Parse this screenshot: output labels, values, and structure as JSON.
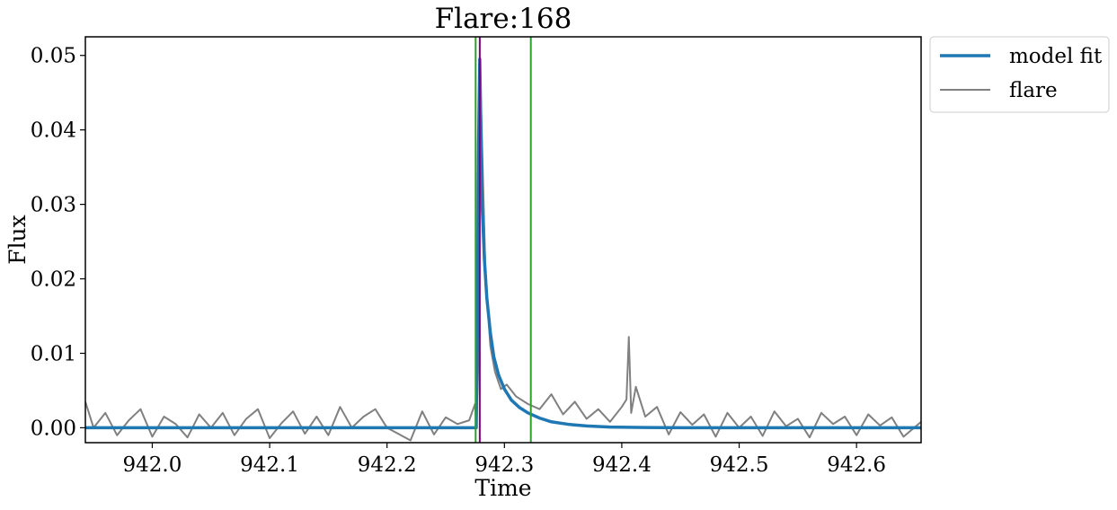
{
  "chart_data": {
    "type": "line",
    "title": "Flare:168",
    "xlabel": "Time",
    "ylabel": "Flux",
    "xlim": [
      941.943,
      942.655
    ],
    "ylim": [
      -0.002,
      0.0525
    ],
    "xticks": [
      942.0,
      942.1,
      942.2,
      942.3,
      942.4,
      942.5,
      942.6
    ],
    "xtick_labels": [
      "942.0",
      "942.1",
      "942.2",
      "942.3",
      "942.4",
      "942.5",
      "942.6"
    ],
    "yticks": [
      0.0,
      0.01,
      0.02,
      0.03,
      0.04,
      0.05
    ],
    "ytick_labels": [
      "0.00",
      "0.01",
      "0.02",
      "0.03",
      "0.04",
      "0.05"
    ],
    "grid": false,
    "legend": {
      "position": "outside-top-right",
      "entries": [
        "model fit",
        "flare"
      ]
    },
    "series": [
      {
        "name": "flare",
        "color": "#808080",
        "x": [
          941.943,
          941.95,
          941.96,
          941.97,
          941.98,
          941.99,
          942.0,
          942.01,
          942.02,
          942.03,
          942.04,
          942.05,
          942.06,
          942.07,
          942.08,
          942.09,
          942.1,
          942.11,
          942.12,
          942.13,
          942.14,
          942.15,
          942.16,
          942.17,
          942.18,
          942.19,
          942.2,
          942.22,
          942.23,
          942.24,
          942.25,
          942.26,
          942.27,
          942.275,
          942.276,
          942.278,
          942.279,
          942.281,
          942.284,
          942.288,
          942.292,
          942.297,
          942.302,
          942.31,
          942.32,
          942.33,
          942.34,
          942.35,
          942.36,
          942.37,
          942.38,
          942.39,
          942.4,
          942.404,
          942.406,
          942.408,
          942.412,
          942.42,
          942.43,
          942.44,
          942.45,
          942.46,
          942.47,
          942.48,
          942.49,
          942.5,
          942.51,
          942.52,
          942.53,
          942.54,
          942.55,
          942.56,
          942.57,
          942.58,
          942.59,
          942.6,
          942.61,
          942.62,
          942.63,
          942.64,
          942.655
        ],
        "y": [
          0.0035,
          0.0,
          0.002,
          -0.001,
          0.001,
          0.0025,
          -0.0012,
          0.0015,
          0.0005,
          -0.0013,
          0.0018,
          0.0,
          0.002,
          -0.001,
          0.0012,
          0.0025,
          -0.0014,
          0.0006,
          0.0022,
          -0.0008,
          0.0015,
          -0.001,
          0.0028,
          0.0,
          0.0015,
          0.0025,
          0.0,
          -0.0017,
          0.0022,
          -0.0009,
          0.0014,
          0.0005,
          0.001,
          0.0032,
          0.0,
          0.01,
          0.0495,
          0.038,
          0.02,
          0.011,
          0.0075,
          0.0052,
          0.0058,
          0.0042,
          0.0032,
          0.0025,
          0.0045,
          0.0018,
          0.0035,
          0.0012,
          0.0025,
          0.0008,
          0.0028,
          0.0038,
          0.0122,
          0.002,
          0.0055,
          0.0015,
          0.0028,
          -0.0009,
          0.0021,
          0.0004,
          0.0018,
          -0.0012,
          0.002,
          0.0,
          0.0015,
          -0.0011,
          0.0022,
          0.0002,
          0.0012,
          -0.0013,
          0.002,
          0.0005,
          0.0015,
          -0.001,
          0.0018,
          0.0003,
          0.0014,
          -0.0012,
          0.0008
        ]
      },
      {
        "name": "model fit",
        "color": "#1f77b4",
        "x": [
          941.943,
          942.276,
          942.277,
          942.278,
          942.279,
          942.28,
          942.281,
          942.283,
          942.285,
          942.288,
          942.291,
          942.295,
          942.3,
          942.306,
          942.313,
          942.32,
          942.33,
          942.34,
          942.355,
          942.37,
          942.39,
          942.42,
          942.46,
          942.52,
          942.6,
          942.655
        ],
        "y": [
          0.0,
          0.0,
          0.014,
          0.038,
          0.0495,
          0.04,
          0.03,
          0.0225,
          0.0175,
          0.0128,
          0.0095,
          0.0071,
          0.0052,
          0.0037,
          0.0027,
          0.002,
          0.0013,
          0.0008,
          0.00045,
          0.00025,
          0.0001,
          3e-05,
          0.0,
          0.0,
          0.0,
          0.0
        ]
      }
    ],
    "vertical_lines": [
      {
        "x": 942.2755,
        "color": "#2ca02c"
      },
      {
        "x": 942.3225,
        "color": "#2ca02c"
      },
      {
        "x": 942.279,
        "color": "#800080"
      }
    ]
  }
}
